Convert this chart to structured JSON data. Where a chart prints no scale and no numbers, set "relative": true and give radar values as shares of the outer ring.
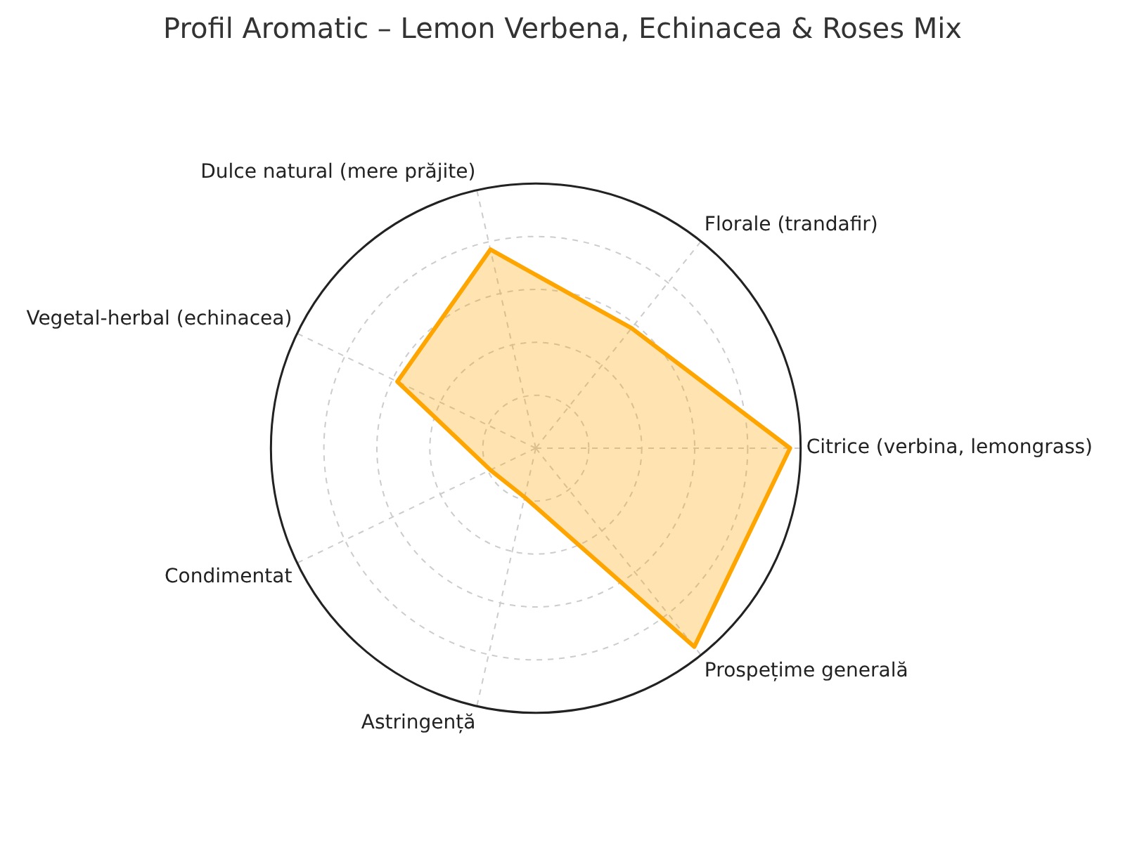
{
  "chart_data": {
    "type": "radar",
    "title": "Profil Aromatic – Lemon Verbena, Echinacea & Roses Mix",
    "categories": [
      "Dulce natural (mere prăjite)",
      "Florale (trandafir)",
      "Citrice (verbina, lemongrass)",
      "Prospețime generală",
      "Astringență",
      "Condimentat",
      "Vegetal-herbal (echinacea)"
    ],
    "series": [
      {
        "color": "#ffa500",
        "values": [
          0.77,
          0.58,
          0.96,
          0.96,
          0.19,
          0.19,
          0.58
        ]
      }
    ],
    "relative": true,
    "grid": true,
    "legend": false,
    "marker": "none",
    "line_style": "solid"
  }
}
